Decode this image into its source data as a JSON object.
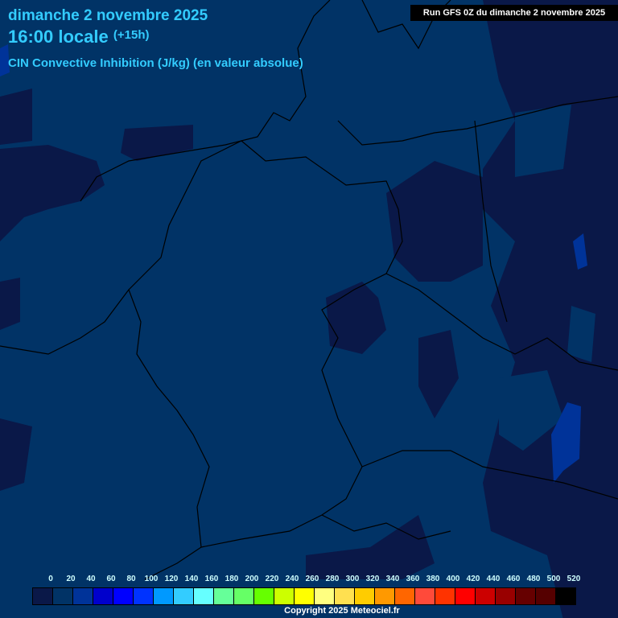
{
  "header": {
    "date": "dimanche 2 novembre 2025",
    "time": "16:00 locale",
    "offset": "(+15h)",
    "parameter": "CIN Convective Inhibition (J/kg) (en valeur absolue)",
    "run": "Run GFS 0Z du dimanche 2 novembre 2025"
  },
  "legend": {
    "labels": [
      "0",
      "20",
      "40",
      "60",
      "80",
      "100",
      "120",
      "140",
      "160",
      "180",
      "200",
      "220",
      "240",
      "260",
      "280",
      "300",
      "320",
      "340",
      "360",
      "380",
      "400",
      "420",
      "440",
      "460",
      "480",
      "500",
      "520"
    ],
    "colors": [
      "#0a1848",
      "#013366",
      "#003399",
      "#0000cc",
      "#0000ff",
      "#0033ff",
      "#0099ff",
      "#33ccff",
      "#66ffff",
      "#66ff99",
      "#66ff66",
      "#66ff00",
      "#ccff00",
      "#ffff00",
      "#ffff80",
      "#ffe050",
      "#ffcc00",
      "#ff9900",
      "#ff6600",
      "#ff4a3a",
      "#ff3300",
      "#ff0000",
      "#cc0000",
      "#990000",
      "#660000",
      "#550000",
      "#000000"
    ]
  },
  "map_colors": {
    "base": "#013366",
    "low": "#0a1848",
    "moderate": "#003399",
    "outline": "#000000"
  },
  "copyright": "Copyright 2025 Meteociel.fr"
}
